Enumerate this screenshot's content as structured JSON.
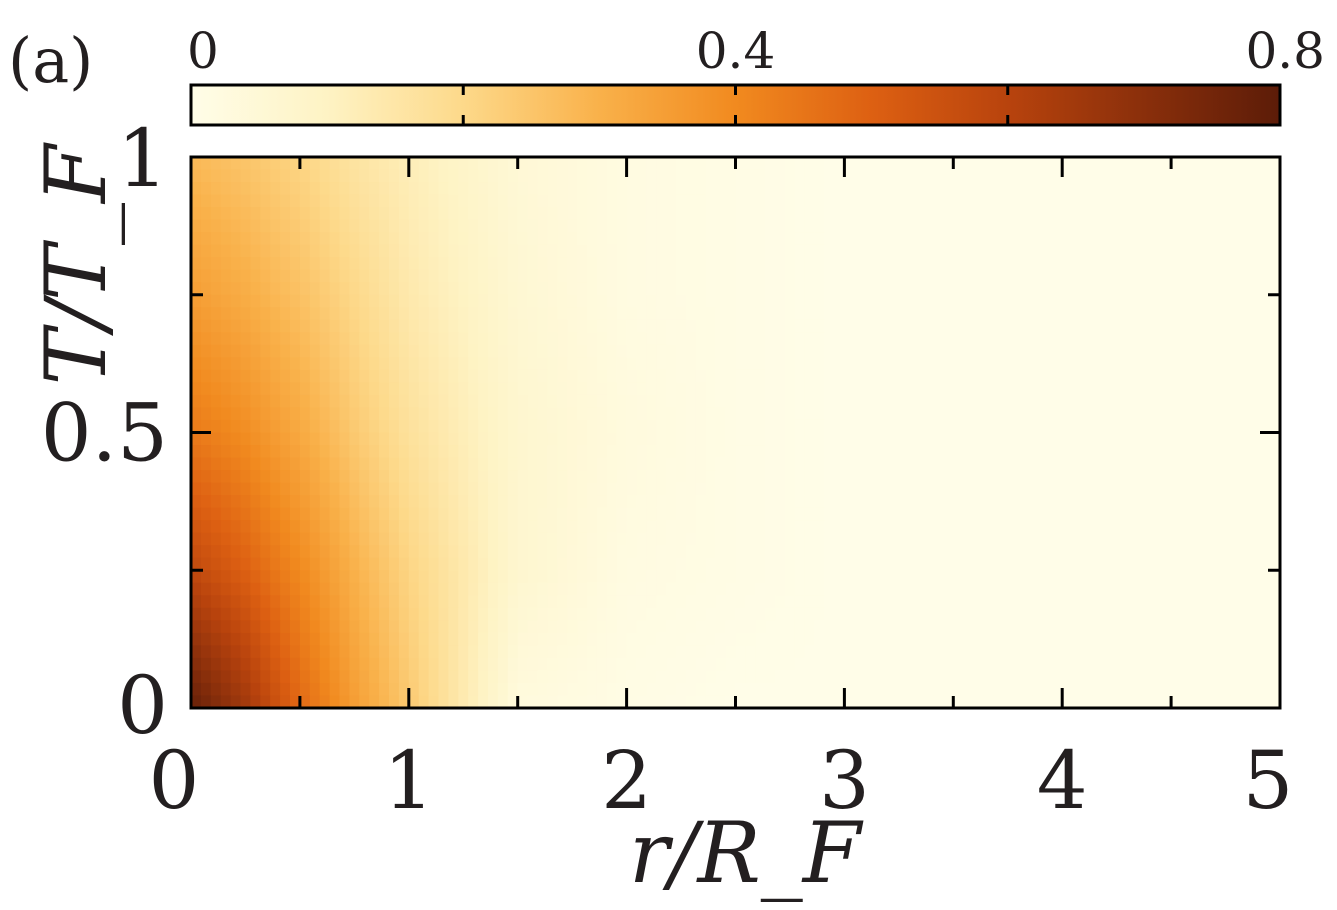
{
  "panel_label": "(a)",
  "chart_data": {
    "type": "heatmap",
    "xlabel": "r/R_F",
    "ylabel": "T/T_F",
    "xlim": [
      0,
      5
    ],
    "ylim": [
      0,
      1
    ],
    "x_ticks": [
      "0",
      "1",
      "2",
      "3",
      "4",
      "5"
    ],
    "y_ticks": [
      "0",
      "0.5",
      "1"
    ],
    "colorbar": {
      "position": "top",
      "range": [
        0,
        0.8
      ],
      "ticks": [
        "0",
        "0.4",
        "0.8"
      ],
      "colormap": [
        "#fffde8",
        "#fef3c4",
        "#fdd98a",
        "#f9b14a",
        "#f18a1f",
        "#dd6012",
        "#b8430d",
        "#8a2f0b",
        "#5c1c08"
      ]
    },
    "value_grid": {
      "x": [
        0,
        0.25,
        0.5,
        0.75,
        1.0,
        1.5,
        2.0,
        2.5,
        3.0,
        5.0
      ],
      "y": [
        0,
        0.25,
        0.5,
        0.75,
        1.0
      ],
      "z": [
        [
          0.78,
          0.65,
          0.48,
          0.35,
          0.24,
          0.03,
          0.01,
          0.0,
          0.0,
          0.0
        ],
        [
          0.58,
          0.5,
          0.4,
          0.3,
          0.21,
          0.07,
          0.02,
          0.01,
          0.0,
          0.0
        ],
        [
          0.44,
          0.39,
          0.32,
          0.24,
          0.17,
          0.07,
          0.03,
          0.01,
          0.0,
          0.0
        ],
        [
          0.35,
          0.31,
          0.26,
          0.2,
          0.14,
          0.06,
          0.02,
          0.01,
          0.0,
          0.0
        ],
        [
          0.28,
          0.25,
          0.21,
          0.16,
          0.12,
          0.05,
          0.02,
          0.01,
          0.0,
          0.0
        ]
      ]
    },
    "grid": false
  }
}
